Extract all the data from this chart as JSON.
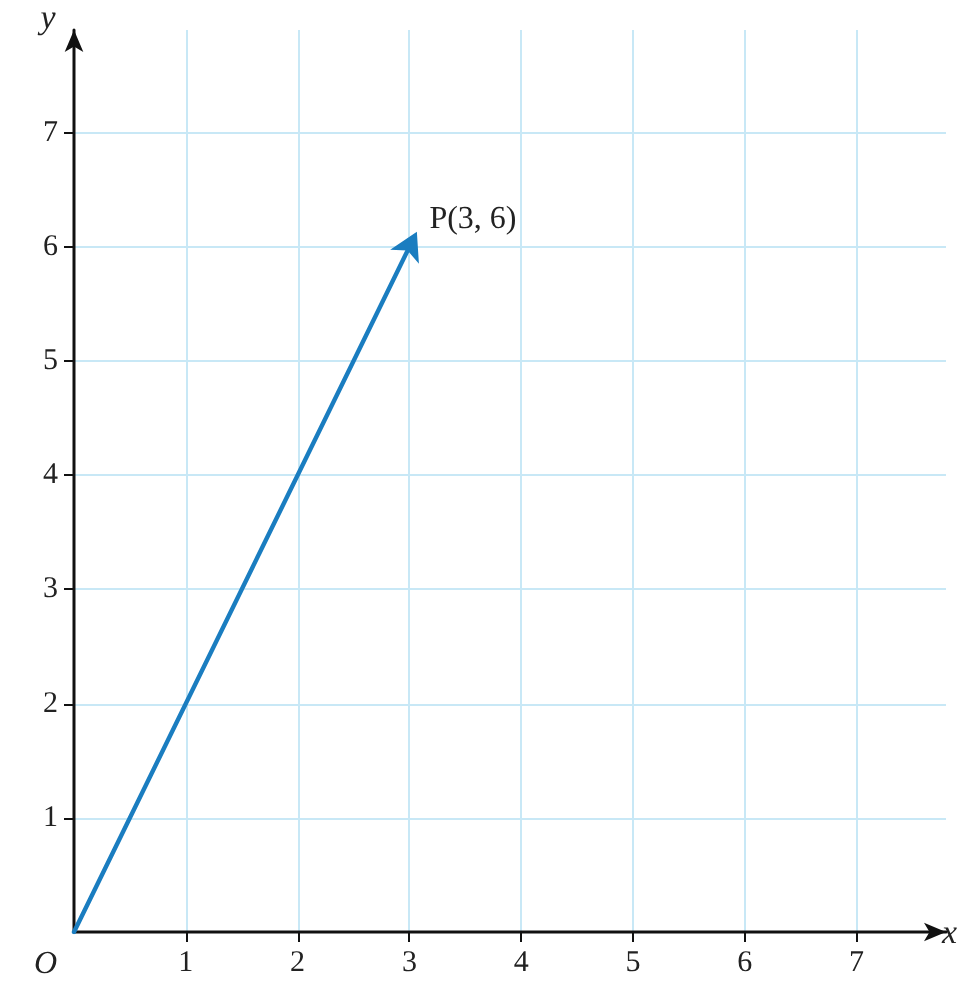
{
  "chart_data": {
    "type": "line",
    "xlabel": "x",
    "ylabel": "y",
    "xlim": [
      0,
      7.8
    ],
    "ylim": [
      0,
      7.9
    ],
    "xticks": [
      1,
      2,
      3,
      4,
      5,
      6,
      7
    ],
    "yticks": [
      1,
      2,
      3,
      4,
      5,
      6,
      7
    ],
    "grid": true,
    "series": [
      {
        "color": "#1a7dc0",
        "x": [
          0,
          3
        ],
        "values": [
          0,
          6
        ]
      }
    ],
    "annotations": [
      {
        "text": "P(3, 6)",
        "x": 3,
        "y": 6
      },
      {
        "text": "O",
        "x": 0,
        "y": 0
      }
    ]
  }
}
